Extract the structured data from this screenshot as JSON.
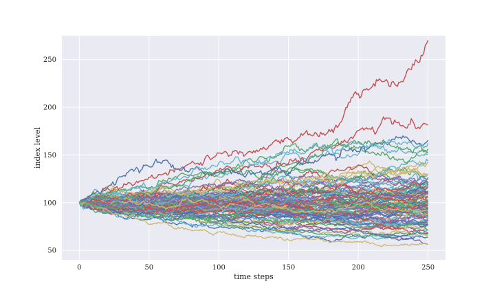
{
  "chart_data": {
    "type": "line",
    "title": "",
    "xlabel": "time steps",
    "ylabel": "index level",
    "xlim": [
      -12.5,
      262.5
    ],
    "ylim": [
      40,
      275
    ],
    "xticks": [
      0,
      50,
      100,
      150,
      200,
      250
    ],
    "yticks": [
      50,
      100,
      150,
      200,
      250
    ],
    "grid": true,
    "legend": "none",
    "background": "#eaeaf2",
    "grid_color": "#ffffff",
    "palette": [
      "#4c72b0",
      "#55a868",
      "#c44e52",
      "#8172b2",
      "#ccb974",
      "#64b5cd"
    ],
    "n_paths": 100,
    "n_steps": 250,
    "start_value": 100,
    "series_keypoints": [
      {
        "color": "#c44e52",
        "x": [
          0,
          50,
          100,
          150,
          180,
          200,
          230,
          250
        ],
        "y": [
          100,
          125,
          150,
          165,
          175,
          210,
          225,
          265
        ]
      },
      {
        "color": "#c44e52",
        "x": [
          0,
          50,
          100,
          150,
          190,
          220,
          250
        ],
        "y": [
          100,
          110,
          135,
          145,
          160,
          185,
          178
        ]
      },
      {
        "color": "#4c72b0",
        "x": [
          0,
          30,
          60,
          100,
          150,
          200,
          250
        ],
        "y": [
          100,
          125,
          142,
          130,
          135,
          160,
          170
        ]
      },
      {
        "color": "#55a868",
        "x": [
          0,
          50,
          100,
          150,
          200,
          250
        ],
        "y": [
          100,
          112,
          128,
          155,
          165,
          155
        ]
      },
      {
        "color": "#64b5cd",
        "x": [
          0,
          50,
          100,
          150,
          200,
          250
        ],
        "y": [
          100,
          118,
          140,
          150,
          160,
          165
        ]
      },
      {
        "color": "#8172b2",
        "x": [
          0,
          50,
          100,
          150,
          200,
          250
        ],
        "y": [
          100,
          92,
          85,
          75,
          70,
          58
        ]
      },
      {
        "color": "#ccb974",
        "x": [
          0,
          50,
          100,
          150,
          200,
          250
        ],
        "y": [
          100,
          80,
          67,
          62,
          58,
          55
        ]
      },
      {
        "color": "#55a868",
        "x": [
          0,
          50,
          100,
          150,
          200,
          250
        ],
        "y": [
          100,
          85,
          78,
          70,
          65,
          68
        ]
      }
    ]
  }
}
